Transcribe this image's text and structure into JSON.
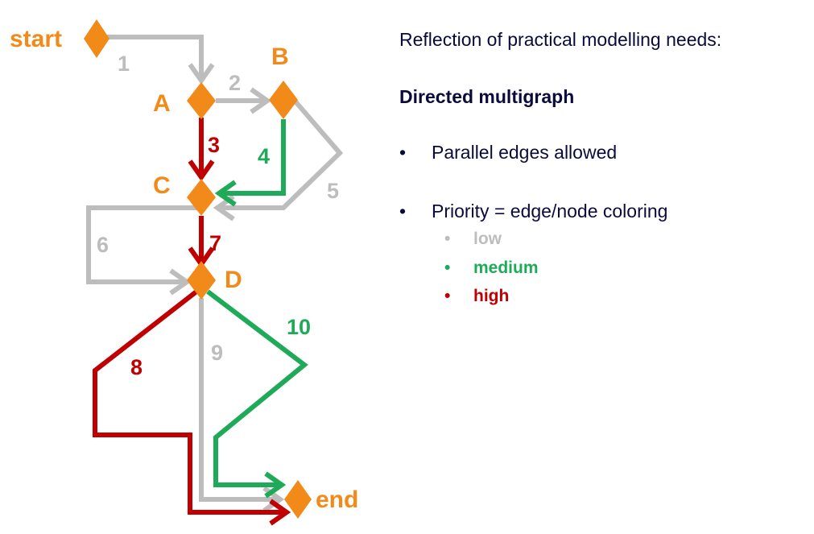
{
  "colors": {
    "low": "#bdbdbd",
    "medium": "#1faa59",
    "high": "#c00000",
    "node": "#f28a1a",
    "text": "#0b0b3b"
  },
  "nodes": {
    "start": "start",
    "A": "A",
    "B": "B",
    "C": "C",
    "D": "D",
    "end": "end"
  },
  "edges": [
    {
      "label": "1",
      "from": "start",
      "to": "A",
      "priority": "low"
    },
    {
      "label": "2",
      "from": "A",
      "to": "B",
      "priority": "low"
    },
    {
      "label": "3",
      "from": "A",
      "to": "C",
      "priority": "high"
    },
    {
      "label": "4",
      "from": "B",
      "to": "C",
      "priority": "medium"
    },
    {
      "label": "5",
      "from": "B",
      "to": "C",
      "priority": "low"
    },
    {
      "label": "6",
      "from": "C",
      "to": "D",
      "priority": "low"
    },
    {
      "label": "7",
      "from": "C",
      "to": "D",
      "priority": "high"
    },
    {
      "label": "8",
      "from": "D",
      "to": "end",
      "priority": "high"
    },
    {
      "label": "9",
      "from": "D",
      "to": "end",
      "priority": "low"
    },
    {
      "label": "10",
      "from": "D",
      "to": "end",
      "priority": "medium"
    }
  ],
  "panel": {
    "heading": "Reflection of practical modelling needs:",
    "subheading": "Directed multigraph",
    "bullets": [
      "Parallel edges allowed",
      "Priority = edge/node coloring"
    ],
    "bullet_glyph": "•",
    "levels": [
      "low",
      "medium",
      "high"
    ]
  }
}
